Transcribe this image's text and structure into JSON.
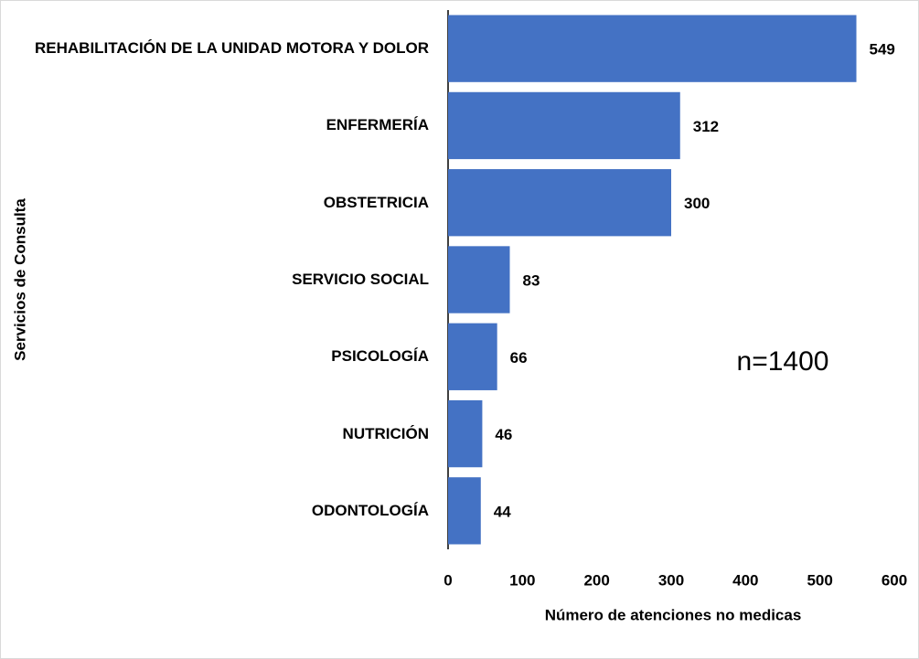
{
  "chart_data": {
    "type": "bar",
    "orientation": "horizontal",
    "categories": [
      "REHABILITACIÓN DE LA UNIDAD MOTORA Y DOLOR",
      "ENFERMERÍA",
      "OBSTETRICIA",
      "SERVICIO SOCIAL",
      "PSICOLOGÍA",
      "NUTRICIÓN",
      "ODONTOLOGÍA"
    ],
    "values": [
      549,
      312,
      300,
      83,
      66,
      46,
      44
    ],
    "color": "#4472c4",
    "xlim": [
      0,
      600
    ],
    "xticks": [
      0,
      100,
      200,
      300,
      400,
      500,
      600
    ],
    "xlabel": "Número de atenciones no medicas",
    "ylabel": "Servicios de Consulta",
    "annotation": "n=1400",
    "grid": false
  }
}
